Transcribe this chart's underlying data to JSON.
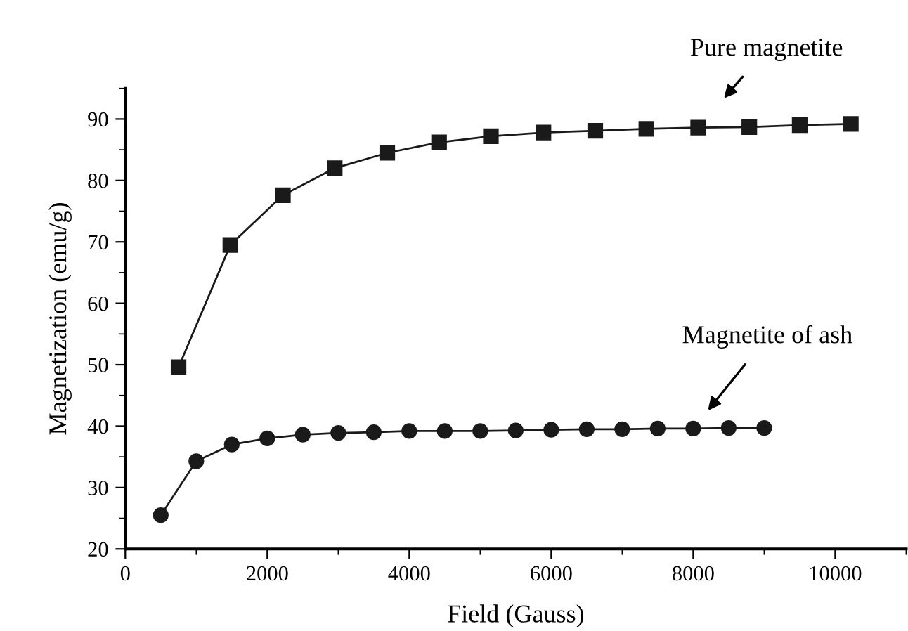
{
  "chart_data": {
    "type": "line",
    "xlabel": "Field (Gauss)",
    "ylabel": "Magnetization (emu/g)",
    "series": [
      {
        "name": "Pure magnetite",
        "color": "#1a1a1a",
        "marker": "square",
        "x": [
          750,
          1480,
          2220,
          2950,
          3690,
          4420,
          5150,
          5890,
          6620,
          7340,
          8070,
          8790,
          9500,
          10220
        ],
        "values": [
          49.6,
          69.5,
          77.6,
          82,
          84.5,
          86.2,
          87.2,
          87.8,
          88.1,
          88.4,
          88.6,
          88.7,
          89.0,
          89.2
        ]
      },
      {
        "name": "Magnetite of ash",
        "color": "#1a1a1a",
        "marker": "circle",
        "x": [
          500,
          1000,
          1500,
          2000,
          2500,
          3000,
          3500,
          4000,
          4500,
          5000,
          5500,
          6000,
          6500,
          7000,
          7500,
          8000,
          8500,
          9000
        ],
        "values": [
          25.5,
          34.3,
          37,
          38,
          38.6,
          38.9,
          39,
          39.2,
          39.2,
          39.2,
          39.3,
          39.4,
          39.5,
          39.5,
          39.6,
          39.6,
          39.7,
          39.7
        ]
      }
    ],
    "xlim": [
      0,
      11000
    ],
    "xticks": [
      0,
      2000,
      4000,
      6000,
      8000,
      10000
    ],
    "ylim": [
      20,
      95
    ],
    "yticks": [
      20,
      30,
      40,
      50,
      60,
      70,
      80,
      90
    ],
    "grid": false,
    "legend": false,
    "line_style": "solid"
  }
}
